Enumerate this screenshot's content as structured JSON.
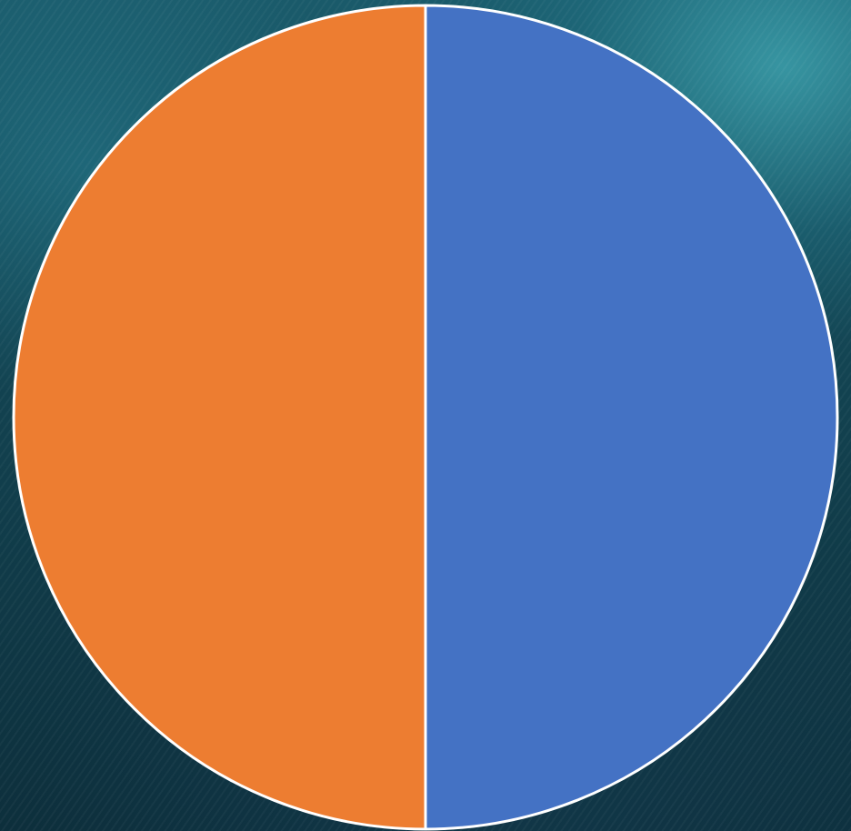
{
  "chart_data": {
    "type": "pie",
    "title": "",
    "categories": [
      "",
      ""
    ],
    "values": [
      50,
      50
    ],
    "colors": [
      "#4472C4",
      "#ED7D31"
    ],
    "slice_border_color": "#FFFFFF",
    "start_angle_deg": 0,
    "direction": "clockwise",
    "legend": "none",
    "data_labels": "none"
  },
  "background": {
    "style": "ocean-wave-photo",
    "colors": [
      "#1a5a6a",
      "#12414f",
      "#0d2f3c"
    ]
  }
}
